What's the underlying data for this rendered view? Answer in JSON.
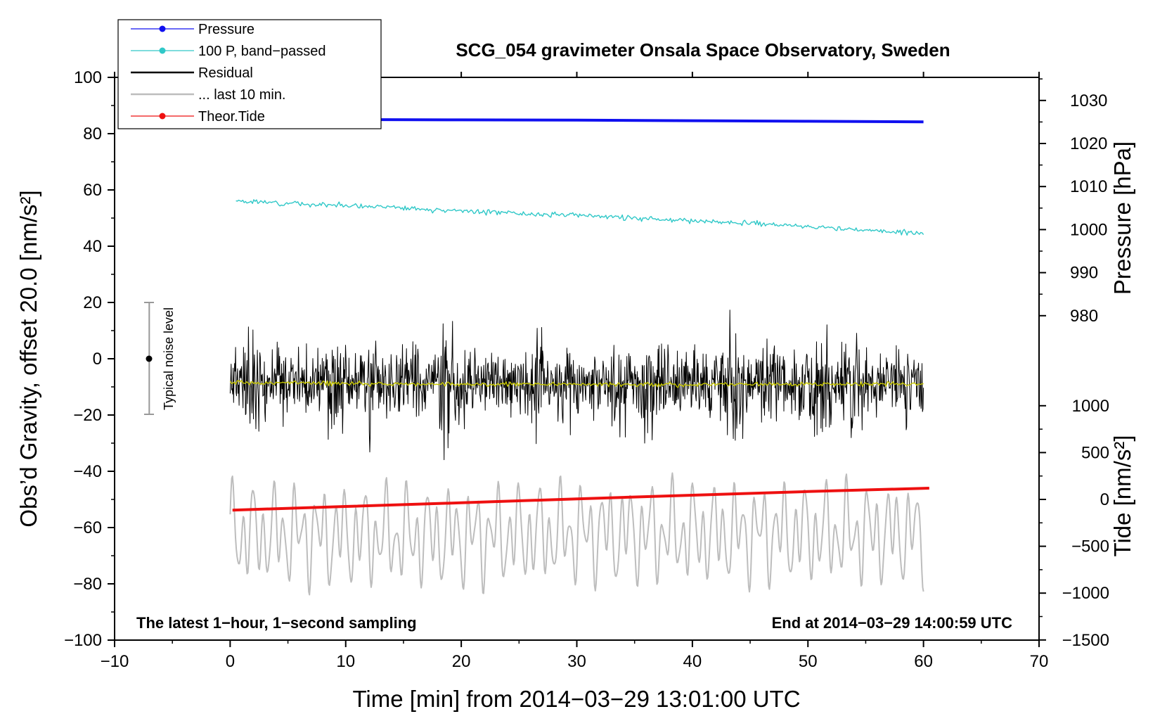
{
  "chart_data": {
    "type": "line",
    "title": "SCG_054 gravimeter Onsala Space Observatory, Sweden",
    "xlabel": "Time [min] from 2014−03−29 13:01:00 UTC",
    "ylabel": "Obs’d Gravity, offset 20.0 [nm/s²]",
    "ylabel_right_upper": "Pressure [hPa]",
    "ylabel_right_lower": "Tide [nm/s²]",
    "xlim": [
      -10,
      70
    ],
    "ylim": [
      -100,
      100
    ],
    "x_ticks": [
      -10,
      0,
      10,
      20,
      30,
      40,
      50,
      60,
      70
    ],
    "x_tick_labels": [
      "−10",
      "0",
      "10",
      "20",
      "30",
      "40",
      "50",
      "60",
      "70"
    ],
    "y_ticks": [
      -100,
      -80,
      -60,
      -40,
      -20,
      0,
      20,
      40,
      60,
      80,
      100
    ],
    "y_tick_labels": [
      "−100",
      "−80",
      "−60",
      "−40",
      "−20",
      "0",
      "20",
      "40",
      "60",
      "80",
      "100"
    ],
    "pressure_axis": {
      "ticks": [
        980,
        990,
        1000,
        1010,
        1020,
        1030
      ],
      "tick_labels": [
        "980",
        "990",
        "1000",
        "1010",
        "1020",
        "1030"
      ],
      "y_at_980": 15.3,
      "y_per_hpa": 1.53
    },
    "tide_axis": {
      "ticks": [
        -1500,
        -1000,
        -500,
        0,
        500,
        1000
      ],
      "tick_labels": [
        "−1500",
        "−1000",
        "−500",
        "0",
        "500",
        "1000"
      ],
      "y_at_0": -50.0,
      "y_per_unit": 0.0333
    },
    "annotations": {
      "left_note": "The latest 1−hour, 1−second sampling",
      "right_note": "End at 2014−03−29 14:00:59 UTC",
      "noise_label": "Typical noise level",
      "noise_bar": {
        "x": -7,
        "y_low": -20,
        "y_high": 20,
        "y_mid": 0
      }
    },
    "legend": [
      {
        "label": "Pressure",
        "color": "#1010f0",
        "marker": "dot"
      },
      {
        "label": "100 P, band−passed",
        "color": "#30c8c8",
        "marker": "dot"
      },
      {
        "label": "Residual",
        "color": "#000000",
        "marker": "none"
      },
      {
        "label": "... last 10 min.",
        "color": "#bdbdbd",
        "marker": "none"
      },
      {
        "label": "Theor.Tide",
        "color": "#ee1010",
        "marker": "dot"
      }
    ],
    "series": [
      {
        "name": "Pressure",
        "color": "#1010f0",
        "style": "thick",
        "x": [
          0,
          10,
          20,
          30,
          40,
          50,
          60
        ],
        "values": [
          85.2,
          85.0,
          84.9,
          84.8,
          84.6,
          84.4,
          84.2
        ]
      },
      {
        "name": "100 P, band−passed",
        "color": "#30c8c8",
        "style": "noisy",
        "noise": 0.8,
        "seed": 3,
        "x": [
          0.5,
          10,
          20,
          30,
          40,
          50,
          60
        ],
        "values": [
          56,
          54.5,
          52.5,
          51,
          49,
          47,
          44.5
        ]
      },
      {
        "name": "Residual",
        "color": "#000000",
        "style": "noisy",
        "noise": 16,
        "seed": 11,
        "x": [
          0,
          10,
          20,
          30,
          40,
          50,
          60
        ],
        "values": [
          -8.5,
          -8.7,
          -8.8,
          -9.0,
          -9.0,
          -8.9,
          -9.0
        ]
      },
      {
        "name": "Residual smoothed",
        "color": "#c8c800",
        "style": "noisy",
        "noise": 0.7,
        "seed": 5,
        "x": [
          0,
          10,
          20,
          30,
          40,
          50,
          60
        ],
        "values": [
          -8.5,
          -8.8,
          -9.1,
          -9.0,
          -9.2,
          -9.0,
          -9.0
        ]
      },
      {
        "name": "... last 10 min.",
        "color": "#bdbdbd",
        "style": "oscillating",
        "amplitude": 16,
        "x": [
          0,
          10,
          20,
          30,
          40,
          50,
          60
        ],
        "values": [
          -62,
          -63,
          -63,
          -62,
          -62,
          -62,
          -62
        ]
      },
      {
        "name": "Theor.Tide",
        "color": "#ee1010",
        "style": "thick",
        "x": [
          0.2,
          10,
          20,
          30,
          40,
          50,
          60.5
        ],
        "values": [
          -53.8,
          -52.5,
          -51.2,
          -49.8,
          -48.5,
          -47.2,
          -46.0
        ]
      }
    ]
  }
}
